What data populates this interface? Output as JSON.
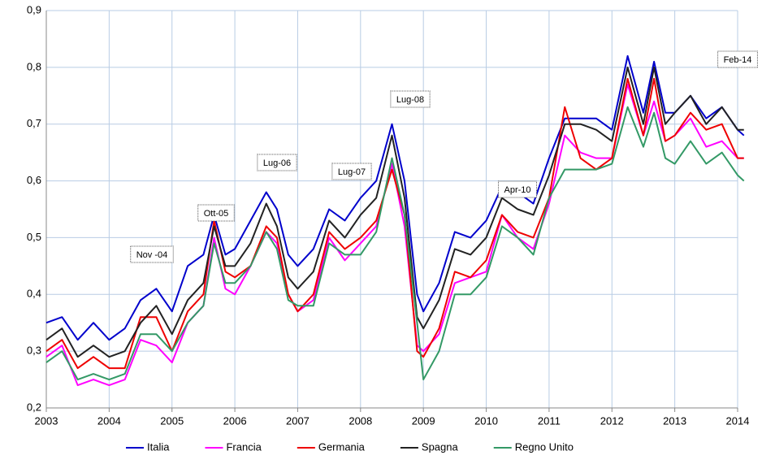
{
  "chart_data": {
    "type": "line",
    "x": [
      2003.0,
      2003.25,
      2003.5,
      2003.75,
      2004.0,
      2004.25,
      2004.5,
      2004.75,
      2005.0,
      2005.25,
      2005.5,
      2005.67,
      2005.85,
      2006.0,
      2006.25,
      2006.5,
      2006.67,
      2006.85,
      2007.0,
      2007.25,
      2007.5,
      2007.75,
      2008.0,
      2008.25,
      2008.5,
      2008.7,
      2008.9,
      2009.0,
      2009.25,
      2009.5,
      2009.75,
      2010.0,
      2010.25,
      2010.5,
      2010.75,
      2011.0,
      2011.25,
      2011.5,
      2011.75,
      2012.0,
      2012.25,
      2012.5,
      2012.67,
      2012.85,
      2013.0,
      2013.25,
      2013.5,
      2013.75,
      2014.0,
      2014.1
    ],
    "series": [
      {
        "name": "Italia",
        "color": "#0000cc",
        "values": [
          0.35,
          0.36,
          0.32,
          0.35,
          0.32,
          0.34,
          0.39,
          0.41,
          0.37,
          0.45,
          0.47,
          0.54,
          0.47,
          0.48,
          0.53,
          0.58,
          0.55,
          0.47,
          0.45,
          0.48,
          0.55,
          0.53,
          0.57,
          0.6,
          0.7,
          0.6,
          0.4,
          0.37,
          0.42,
          0.51,
          0.5,
          0.53,
          0.59,
          0.58,
          0.56,
          0.64,
          0.71,
          0.71,
          0.71,
          0.69,
          0.82,
          0.72,
          0.81,
          0.72,
          0.72,
          0.75,
          0.71,
          0.73,
          0.69,
          0.68
        ]
      },
      {
        "name": "Francia",
        "color": "#ff00ff",
        "values": [
          0.29,
          0.31,
          0.24,
          0.25,
          0.24,
          0.25,
          0.32,
          0.31,
          0.28,
          0.35,
          0.38,
          0.5,
          0.41,
          0.4,
          0.45,
          0.51,
          0.49,
          0.4,
          0.37,
          0.39,
          0.5,
          0.46,
          0.49,
          0.52,
          0.63,
          0.52,
          0.31,
          0.3,
          0.33,
          0.42,
          0.43,
          0.44,
          0.54,
          0.5,
          0.48,
          0.56,
          0.68,
          0.65,
          0.64,
          0.64,
          0.77,
          0.68,
          0.74,
          0.67,
          0.68,
          0.71,
          0.66,
          0.67,
          0.64,
          0.64
        ]
      },
      {
        "name": "Germania",
        "color": "#ee0000",
        "values": [
          0.3,
          0.32,
          0.27,
          0.29,
          0.27,
          0.27,
          0.36,
          0.36,
          0.3,
          0.37,
          0.4,
          0.53,
          0.44,
          0.43,
          0.45,
          0.52,
          0.5,
          0.4,
          0.37,
          0.4,
          0.51,
          0.48,
          0.5,
          0.53,
          0.62,
          0.54,
          0.3,
          0.29,
          0.34,
          0.44,
          0.43,
          0.46,
          0.54,
          0.51,
          0.5,
          0.57,
          0.73,
          0.64,
          0.62,
          0.64,
          0.78,
          0.68,
          0.78,
          0.67,
          0.68,
          0.72,
          0.69,
          0.7,
          0.64,
          0.64
        ]
      },
      {
        "name": "Spagna",
        "color": "#222222",
        "values": [
          0.32,
          0.34,
          0.29,
          0.31,
          0.29,
          0.3,
          0.35,
          0.38,
          0.33,
          0.39,
          0.42,
          0.52,
          0.45,
          0.45,
          0.49,
          0.56,
          0.52,
          0.43,
          0.41,
          0.44,
          0.53,
          0.5,
          0.54,
          0.57,
          0.68,
          0.57,
          0.36,
          0.34,
          0.39,
          0.48,
          0.47,
          0.5,
          0.57,
          0.55,
          0.54,
          0.61,
          0.7,
          0.7,
          0.69,
          0.67,
          0.8,
          0.7,
          0.8,
          0.7,
          0.72,
          0.75,
          0.7,
          0.73,
          0.69,
          0.69
        ]
      },
      {
        "name": "Regno Unito",
        "color": "#339966",
        "values": [
          0.28,
          0.3,
          0.25,
          0.26,
          0.25,
          0.26,
          0.33,
          0.33,
          0.3,
          0.35,
          0.38,
          0.49,
          0.42,
          0.42,
          0.45,
          0.51,
          0.48,
          0.39,
          0.38,
          0.38,
          0.49,
          0.47,
          0.47,
          0.51,
          0.64,
          0.54,
          0.35,
          0.25,
          0.3,
          0.4,
          0.4,
          0.43,
          0.52,
          0.5,
          0.47,
          0.57,
          0.62,
          0.62,
          0.62,
          0.63,
          0.73,
          0.66,
          0.72,
          0.64,
          0.63,
          0.67,
          0.63,
          0.65,
          0.61,
          0.6
        ]
      }
    ],
    "xlim": [
      2003,
      2014
    ],
    "xticks": [
      2003,
      2004,
      2005,
      2006,
      2007,
      2008,
      2009,
      2010,
      2011,
      2012,
      2013,
      2014
    ],
    "ylim": [
      0.2,
      0.9
    ],
    "yticks": [
      {
        "value": 0.2,
        "label": "0,2"
      },
      {
        "value": 0.3,
        "label": "0,3"
      },
      {
        "value": 0.4,
        "label": "0,4"
      },
      {
        "value": 0.5,
        "label": "0,5"
      },
      {
        "value": 0.6,
        "label": "0,6"
      },
      {
        "value": 0.7,
        "label": "0,7"
      },
      {
        "value": 0.8,
        "label": "0,8"
      },
      {
        "value": 0.9,
        "label": "0,9"
      }
    ],
    "grid": true,
    "legend": "bottom",
    "annotations": [
      "Nov -04",
      "Ott-05",
      "Lug-06",
      "Lug-07",
      "Lug-08",
      "Apr-10",
      "Feb-14"
    ]
  }
}
